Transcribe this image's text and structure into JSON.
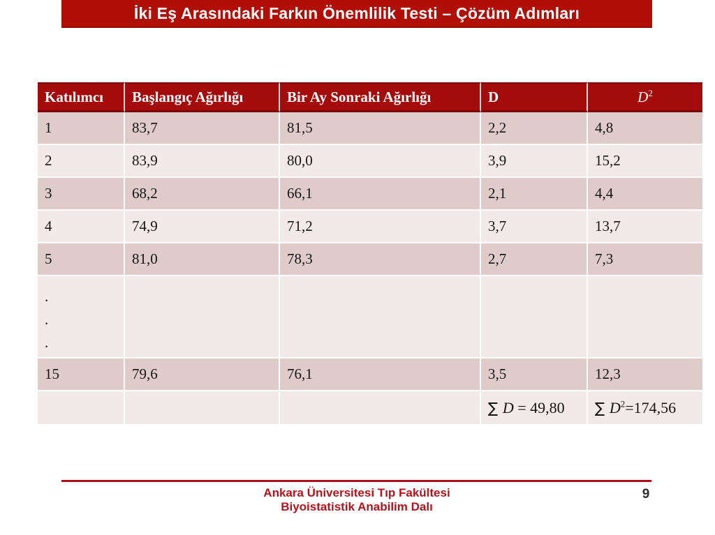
{
  "title_bar": {
    "text": "İki Eş Arasındaki Farkın Önemlilik Testi – Çözüm Adımları"
  },
  "table": {
    "headers": [
      {
        "text": "Katılımcı"
      },
      {
        "text": "Başlangıç Ağırlığı"
      },
      {
        "text": "Bir Ay Sonraki Ağırlığı"
      },
      {
        "text": "D"
      },
      {
        "math": {
          "letter": "D",
          "sup": "2"
        }
      }
    ],
    "rows": [
      {
        "cells": [
          "1",
          "83,7",
          "81,5",
          "2,2",
          "4,8"
        ]
      },
      {
        "cells": [
          "2",
          "83,9",
          "80,0",
          "3,9",
          "15,2"
        ]
      },
      {
        "cells": [
          "3",
          "68,2",
          "66,1",
          "2,1",
          "4,4"
        ]
      },
      {
        "cells": [
          "4",
          "74,9",
          "71,2",
          "3,7",
          "13,7"
        ]
      },
      {
        "cells": [
          "5",
          "81,0",
          "78,3",
          "2,7",
          "7,3"
        ]
      },
      {
        "cells": [
          {
            "dots": [
              ".",
              ".",
              "."
            ]
          },
          "",
          "",
          "",
          ""
        ]
      },
      {
        "cells": [
          "15",
          "79,6",
          "76,1",
          "3,5",
          "12,3"
        ]
      },
      {
        "cells": [
          "",
          "",
          "",
          {
            "sum": {
              "sigma": "∑",
              "letter": "D",
              "sup": "",
              "rest": " = 49,80"
            }
          },
          {
            "sum": {
              "sigma": "∑",
              "letter": "D",
              "sup": "2",
              "rest": "=174,56"
            }
          }
        ]
      }
    ]
  },
  "footer": {
    "institution": "Ankara Üniversitesi Tıp Fakültesi",
    "department": "Biyoistatistik Anabilim Dalı",
    "page_number": "9"
  },
  "colors": {
    "title_bar_bg": "#B10E06",
    "table_header_bg": "#A40B0B",
    "table_header_edge": "#7A0808",
    "row_band_dark": "#E0CBCB",
    "row_band_light": "#F2E9E9",
    "footer_text": "#B6121B",
    "footer_rule": "#A91114",
    "page_number": "#2E2E2E"
  }
}
